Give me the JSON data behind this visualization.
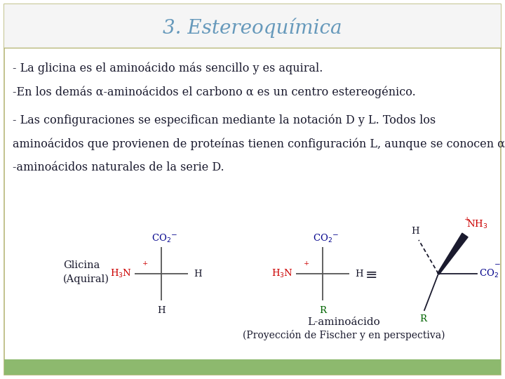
{
  "title": "3. Estereoquímica",
  "title_color": "#6699bb",
  "title_fontsize": 20,
  "bg_color": "#ffffff",
  "border_color": "#b8b87a",
  "bottom_bar_color": "#8db96e",
  "bottom_bar_height": 22,
  "text_color": "#1a1a2e",
  "line1": "- La glicina es el aminoácido más sencillo y es aquiral.",
  "line2": "-En los demás α-aminoácidos el carbono α es un centro estereogénico.",
  "line3a": "- Las configuraciones se especifican mediante la notación D y L. Todos los",
  "line3b": "aminoácidos que provienen de proteínas tienen configuración L, aunque se conocen α",
  "line3c": "-aminoácidos naturales de la serie D.",
  "glicina_label1": "Glicina",
  "glicina_label2": "(Aquiral)",
  "l_amino_label1": "L-aminoácido",
  "l_amino_label2": "(Proyección de Fischer y en perspectiva)",
  "blue_color": "#00008b",
  "red_color": "#cc0000",
  "green_color": "#006400",
  "dark_color": "#1a1a2e",
  "gray_color": "#555555"
}
